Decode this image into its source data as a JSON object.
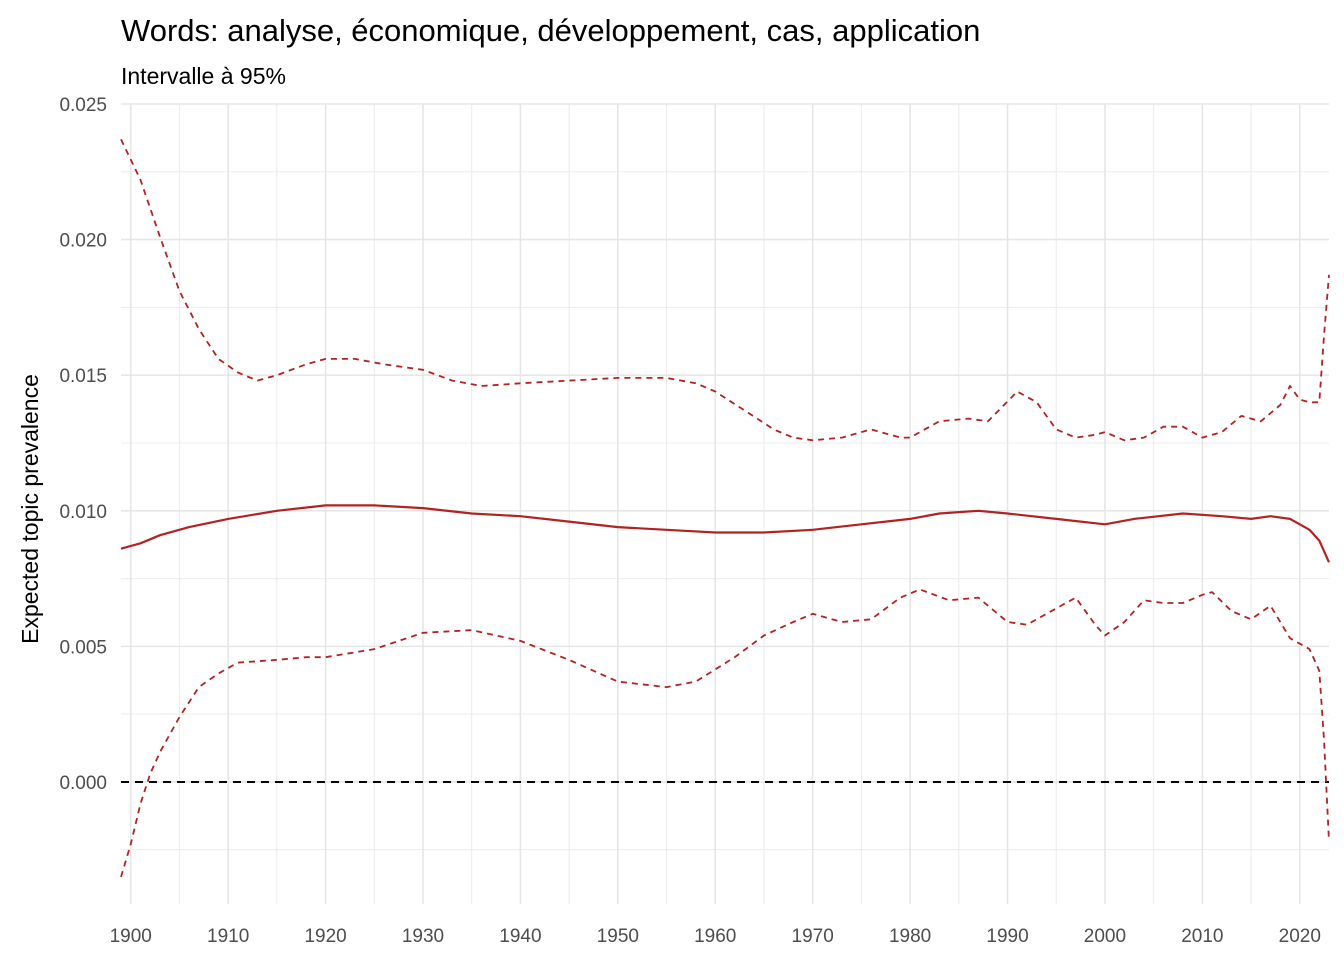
{
  "chart_data": {
    "type": "line",
    "title": "Words: analyse, économique, développement, cas, application",
    "subtitle": "Intervalle à 95%",
    "xlabel": "",
    "ylabel": "Expected topic prevalence",
    "xlim": [
      1899,
      2023
    ],
    "ylim": [
      -0.0045,
      0.025
    ],
    "x_ticks": [
      1900,
      1910,
      1920,
      1930,
      1940,
      1950,
      1960,
      1970,
      1980,
      1990,
      2000,
      2010,
      2020
    ],
    "x_tick_labels": [
      "1900",
      "1910",
      "1920",
      "1930",
      "1940",
      "1950",
      "1960",
      "1970",
      "1980",
      "1990",
      "2000",
      "2010",
      "2020"
    ],
    "y_ticks": [
      0.0,
      0.005,
      0.01,
      0.015,
      0.02,
      0.025
    ],
    "y_tick_labels": [
      "0.000",
      "0.005",
      "0.010",
      "0.015",
      "0.020",
      "0.025"
    ],
    "grid": true,
    "reference_line": {
      "y": 0.0,
      "style": "dashed",
      "color": "#000000"
    },
    "series": [
      {
        "role": "estimate",
        "style": "solid",
        "color": "#b22222",
        "x": [
          1899,
          1901,
          1903,
          1906,
          1910,
          1915,
          1920,
          1925,
          1930,
          1935,
          1940,
          1945,
          1950,
          1955,
          1960,
          1965,
          1970,
          1975,
          1980,
          1983,
          1987,
          1990,
          1995,
          2000,
          2003,
          2008,
          2012,
          2015,
          2017,
          2019,
          2020,
          2021,
          2022,
          2023
        ],
        "y": [
          0.0086,
          0.0088,
          0.0091,
          0.0094,
          0.0097,
          0.01,
          0.0102,
          0.0102,
          0.0101,
          0.0099,
          0.0098,
          0.0096,
          0.0094,
          0.0093,
          0.0092,
          0.0092,
          0.0093,
          0.0095,
          0.0097,
          0.0099,
          0.01,
          0.0099,
          0.0097,
          0.0095,
          0.0097,
          0.0099,
          0.0098,
          0.0097,
          0.0098,
          0.0097,
          0.0095,
          0.0093,
          0.0089,
          0.0081
        ]
      },
      {
        "role": "upper-95",
        "style": "dashed",
        "color": "#b22222",
        "x": [
          1899,
          1901,
          1903,
          1905,
          1907,
          1909,
          1911,
          1913,
          1915,
          1918,
          1920,
          1923,
          1926,
          1928,
          1930,
          1933,
          1936,
          1940,
          1945,
          1950,
          1955,
          1958,
          1960,
          1963,
          1966,
          1968,
          1970,
          1973,
          1976,
          1979,
          1980,
          1983,
          1986,
          1988,
          1991,
          1993,
          1995,
          1997,
          1999,
          2000,
          2002,
          2004,
          2006,
          2008,
          2010,
          2012,
          2014,
          2016,
          2018,
          2019,
          2020,
          2021,
          2022,
          2022.5,
          2023
        ],
        "y": [
          0.0237,
          0.0222,
          0.0201,
          0.0181,
          0.0167,
          0.0156,
          0.0151,
          0.0148,
          0.015,
          0.0154,
          0.0156,
          0.0156,
          0.0154,
          0.0153,
          0.0152,
          0.0148,
          0.0146,
          0.0147,
          0.0148,
          0.0149,
          0.0149,
          0.0147,
          0.0144,
          0.0137,
          0.013,
          0.0127,
          0.0126,
          0.0127,
          0.013,
          0.0127,
          0.0127,
          0.0133,
          0.0134,
          0.0133,
          0.0144,
          0.014,
          0.013,
          0.0127,
          0.0128,
          0.0129,
          0.0126,
          0.0127,
          0.0131,
          0.0131,
          0.0127,
          0.0129,
          0.0135,
          0.0133,
          0.0139,
          0.0146,
          0.0141,
          0.014,
          0.014,
          0.0165,
          0.0187
        ]
      },
      {
        "role": "lower-95",
        "style": "dashed",
        "color": "#b22222",
        "x": [
          1899,
          1900,
          1901,
          1902,
          1903,
          1905,
          1907,
          1909,
          1911,
          1915,
          1918,
          1920,
          1925,
          1930,
          1935,
          1940,
          1945,
          1950,
          1955,
          1958,
          1962,
          1965,
          1968,
          1970,
          1973,
          1976,
          1979,
          1981,
          1984,
          1987,
          1990,
          1992,
          1995,
          1997,
          1999,
          2000,
          2002,
          2004,
          2006,
          2008,
          2010,
          2011,
          2013,
          2015,
          2017,
          2019,
          2020,
          2021,
          2022,
          2022.5,
          2023
        ],
        "y": [
          -0.0035,
          -0.0023,
          -0.0008,
          0.0003,
          0.0011,
          0.0024,
          0.0035,
          0.004,
          0.0044,
          0.0045,
          0.0046,
          0.0046,
          0.0049,
          0.0055,
          0.0056,
          0.0052,
          0.0045,
          0.0037,
          0.0035,
          0.0037,
          0.0046,
          0.0054,
          0.0059,
          0.0062,
          0.0059,
          0.006,
          0.0068,
          0.0071,
          0.0067,
          0.0068,
          0.0059,
          0.0058,
          0.0064,
          0.0068,
          0.0058,
          0.0054,
          0.0059,
          0.0067,
          0.0066,
          0.0066,
          0.0069,
          0.007,
          0.0063,
          0.006,
          0.0065,
          0.0053,
          0.0051,
          0.0049,
          0.0041,
          0.0015,
          -0.0022
        ]
      }
    ]
  }
}
